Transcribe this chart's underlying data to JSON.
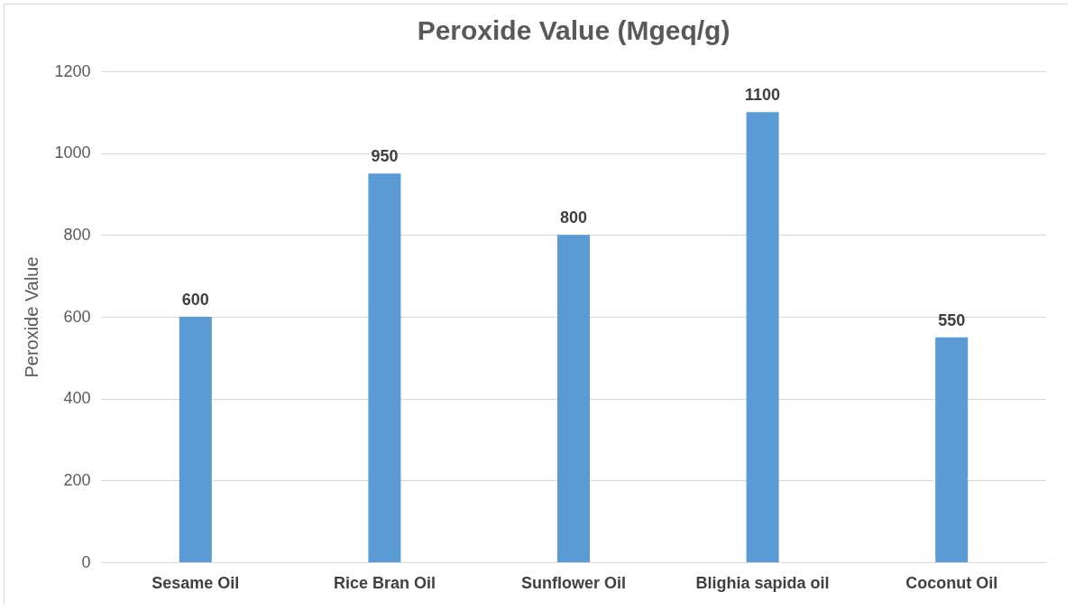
{
  "chart_data": {
    "type": "bar",
    "title": "Peroxide Value (Mgeq/g)",
    "ylabel": "Peroxide Value",
    "categories": [
      "Sesame Oil",
      "Rice Bran Oil",
      "Sunflower Oil",
      "Blighia sapida oil",
      "Coconut Oil"
    ],
    "values": [
      600,
      950,
      800,
      1100,
      550
    ],
    "color": "#5b9bd5",
    "ylim": [
      0,
      1200
    ],
    "yticks": [
      0,
      200,
      400,
      600,
      800,
      1000,
      1200
    ],
    "grid": "y",
    "data_labels": true
  }
}
